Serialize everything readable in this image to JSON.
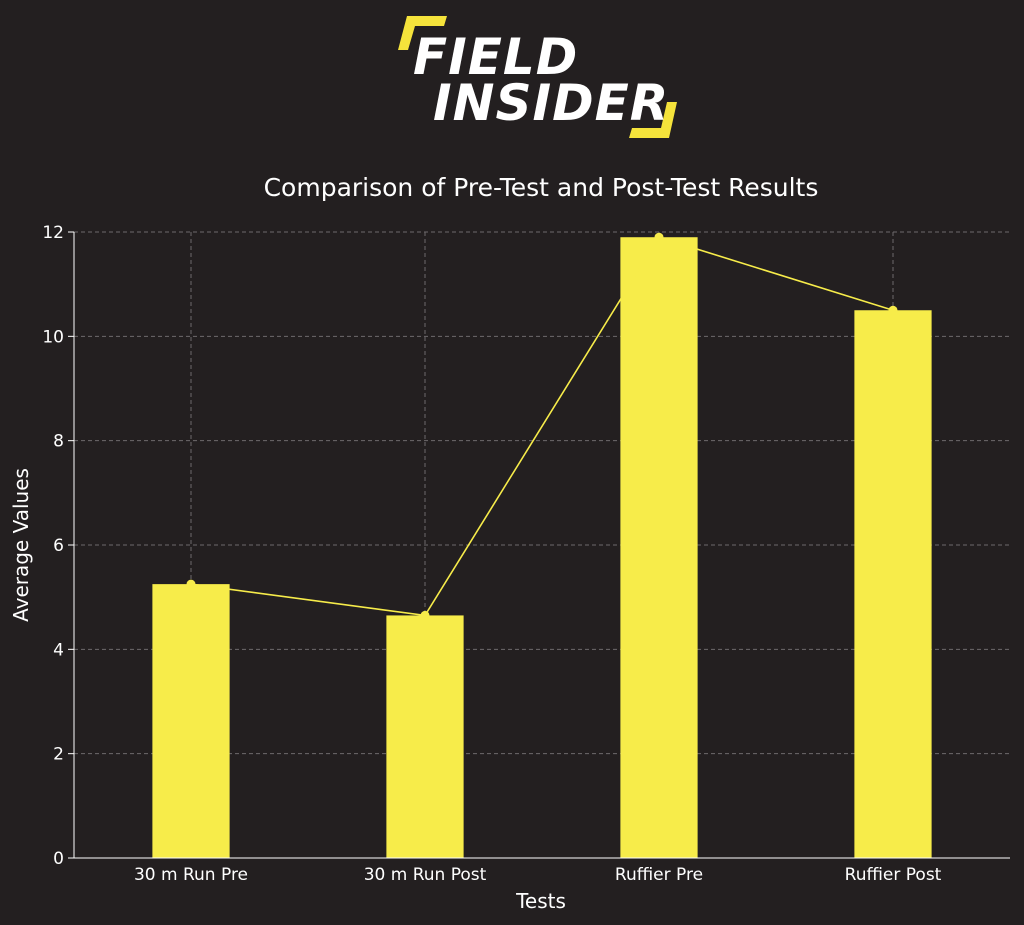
{
  "logo": {
    "line1": "FIELD",
    "line2": "INSIDER",
    "accent_color": "#f5e33b"
  },
  "chart_data": {
    "type": "bar",
    "title": "Comparison of Pre-Test and Post-Test Results",
    "xlabel": "Tests",
    "ylabel": "Average Values",
    "categories": [
      "30 m Run Pre",
      "30 m Run Post",
      "Ruffier Pre",
      "Ruffier Post"
    ],
    "values": [
      5.25,
      4.65,
      11.9,
      10.5
    ],
    "overlay_line": true,
    "ylim": [
      0,
      12
    ],
    "yticks": [
      0,
      2,
      4,
      6,
      8,
      10,
      12
    ],
    "grid": true,
    "bar_color": "#f7ec4a",
    "line_color": "#f7ec4a"
  }
}
